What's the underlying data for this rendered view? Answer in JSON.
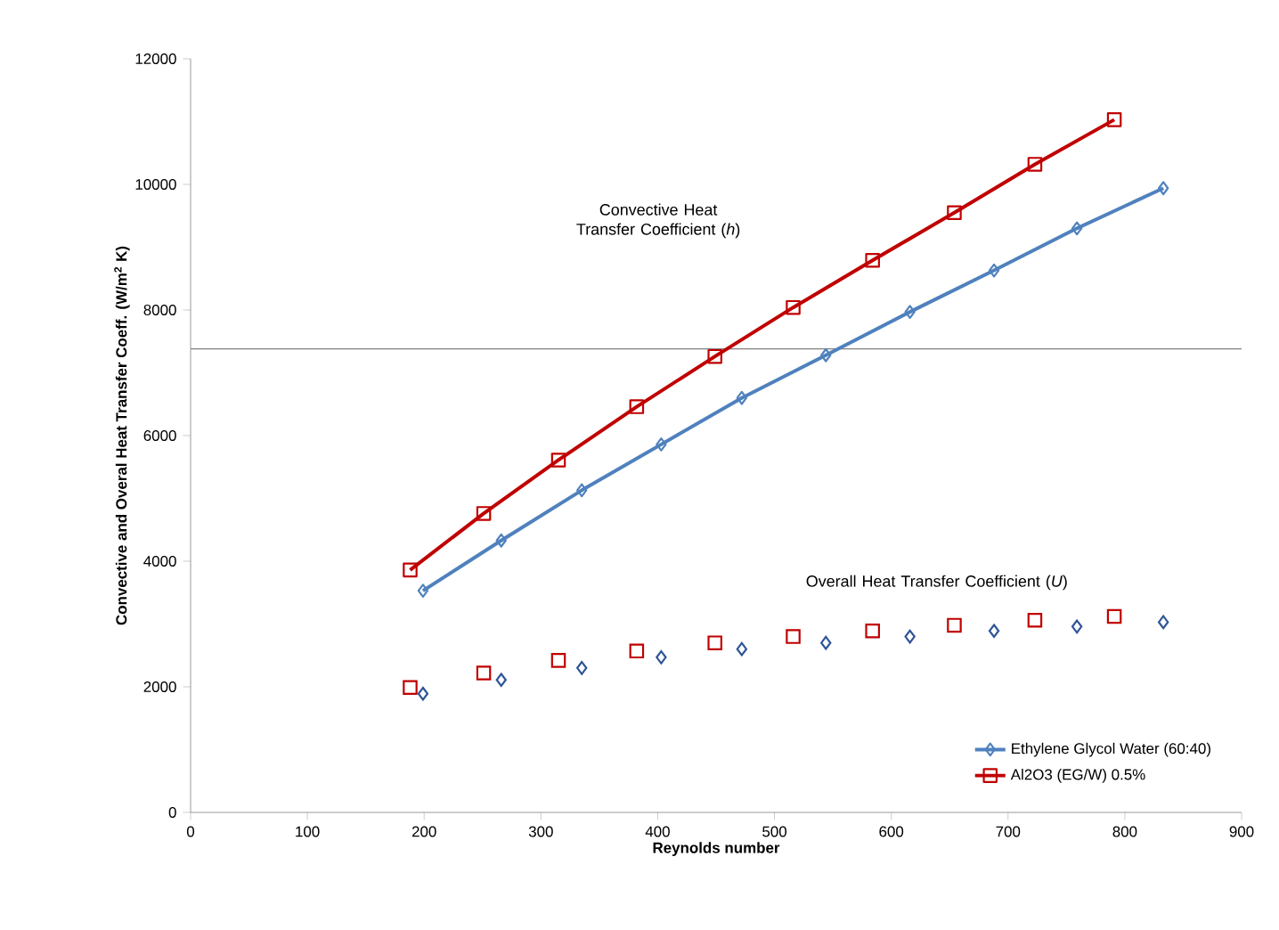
{
  "chart_data": {
    "type": "line",
    "xlabel": "Reynolds number",
    "ylabel": "Convective and Overal Heat Transfer Coeff. (W/m$^{2}$ K)",
    "xlim": [
      0,
      900
    ],
    "xticks": [
      0,
      100,
      200,
      300,
      400,
      500,
      600,
      700,
      800,
      900
    ],
    "ylim": [
      0,
      12000
    ],
    "yticks": [
      0,
      2000,
      4000,
      6000,
      8000,
      10000,
      12000
    ],
    "grid": false,
    "legend": "bottom right",
    "line_style": "solid",
    "series": [
      {
        "name": "Ethylene Glycol Water (60:40)",
        "marker": "diamond",
        "color": "#4f81bd",
        "x": [
          199,
          266,
          335,
          403,
          472,
          544,
          616,
          688,
          759,
          833
        ],
        "values": [
          3530,
          4330,
          5130,
          5860,
          6600,
          7280,
          7970,
          8630,
          9300,
          9940
        ]
      },
      {
        "name": "Al2O3 (EG/W) 0.5%",
        "marker": "square",
        "color": "#c00000",
        "x": [
          188,
          251,
          315,
          382,
          449,
          516,
          584,
          654,
          723,
          791
        ],
        "values": [
          3860,
          4760,
          5610,
          6460,
          7260,
          8040,
          8790,
          9550,
          10320,
          11030
        ]
      },
      {
        "type": "scatter",
        "marker": "diamond",
        "color": "#2f5597",
        "x": [
          199,
          266,
          335,
          403,
          472,
          544,
          616,
          688,
          759,
          833
        ],
        "values": [
          1890,
          2110,
          2300,
          2470,
          2600,
          2700,
          2800,
          2890,
          2960,
          3030
        ]
      },
      {
        "type": "scatter",
        "marker": "square",
        "color": "#c00000",
        "x": [
          188,
          251,
          315,
          382,
          449,
          516,
          584,
          654,
          723,
          791
        ],
        "values": [
          1990,
          2220,
          2420,
          2570,
          2700,
          2800,
          2890,
          2980,
          3060,
          3120
        ]
      }
    ],
    "annotations": [
      "Convective Heat Transfer Coefficient (*h*)",
      "Overall Heat Transfer Coefficient (*U*)"
    ],
    "ref_lines": [
      {
        "axis": "y",
        "value": 7380,
        "color": "#808080"
      }
    ]
  }
}
